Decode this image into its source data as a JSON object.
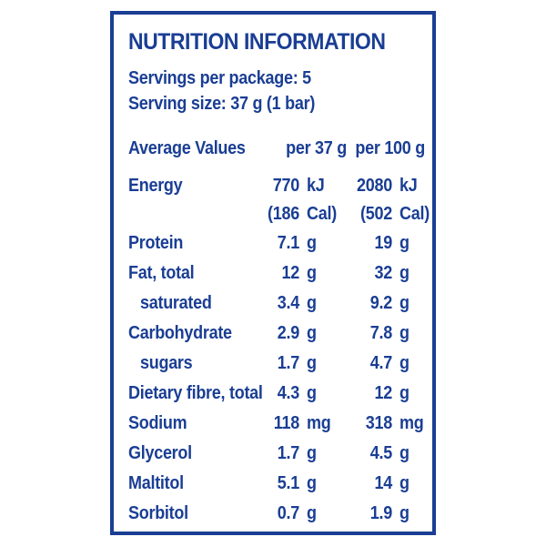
{
  "panel": {
    "title": "NUTRITION INFORMATION",
    "servings_line": "Servings per package: 5",
    "serving_size_line": "Serving size: 37 g (1 bar)",
    "columns": {
      "label": "Average Values",
      "col1": "per 37 g",
      "col2": "per 100 g"
    },
    "rows": [
      {
        "label": "Energy",
        "indent": false,
        "v37": "770",
        "u37": "kJ",
        "v100": "2080",
        "u100": "kJ"
      },
      {
        "label": "",
        "indent": false,
        "v37": "(186",
        "u37": "Cal)",
        "v100": "(502",
        "u100": "Cal)"
      },
      {
        "label": "Protein",
        "indent": false,
        "v37": "7.1",
        "u37": "g",
        "v100": "19",
        "u100": "g"
      },
      {
        "label": "Fat, total",
        "indent": false,
        "v37": "12",
        "u37": "g",
        "v100": "32",
        "u100": "g"
      },
      {
        "label": "saturated",
        "indent": true,
        "v37": "3.4",
        "u37": "g",
        "v100": "9.2",
        "u100": "g"
      },
      {
        "label": "Carbohydrate",
        "indent": false,
        "v37": "2.9",
        "u37": "g",
        "v100": "7.8",
        "u100": "g"
      },
      {
        "label": "sugars",
        "indent": true,
        "v37": "1.7",
        "u37": "g",
        "v100": "4.7",
        "u100": "g"
      },
      {
        "label": "Dietary fibre, total",
        "indent": false,
        "v37": "4.3",
        "u37": "g",
        "v100": "12",
        "u100": "g"
      },
      {
        "label": "Sodium",
        "indent": false,
        "v37": "118",
        "u37": "mg",
        "v100": "318",
        "u100": "mg"
      },
      {
        "label": "Glycerol",
        "indent": false,
        "v37": "1.7",
        "u37": "g",
        "v100": "4.5",
        "u100": "g"
      },
      {
        "label": "Maltitol",
        "indent": false,
        "v37": "5.1",
        "u37": "g",
        "v100": "14",
        "u100": "g"
      },
      {
        "label": "Sorbitol",
        "indent": false,
        "v37": "0.7",
        "u37": "g",
        "v100": "1.9",
        "u100": "g"
      }
    ],
    "colors": {
      "ink": "#1a3e94",
      "background": "#ffffff"
    }
  }
}
